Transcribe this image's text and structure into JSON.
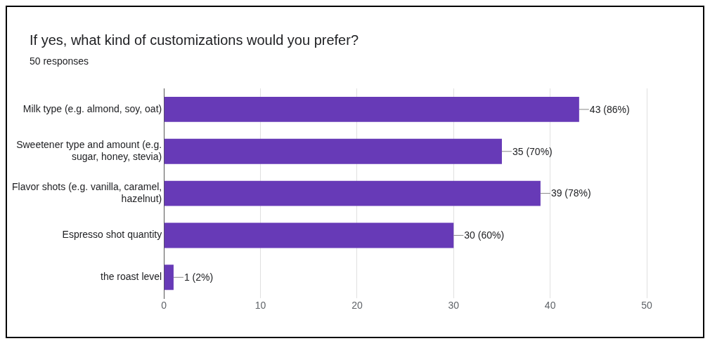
{
  "chart_data": {
    "type": "bar",
    "orientation": "horizontal",
    "title": "If yes, what kind of customizations would you prefer?",
    "subtitle": "50 responses",
    "categories": [
      "Milk type (e.g. almond, soy, oat)",
      "Sweetener type and amount (e.g. sugar, honey, stevia)",
      "Flavor shots (e.g. vanilla, caramel, hazelnut)",
      "Espresso shot quantity",
      "the roast level"
    ],
    "values": [
      43,
      35,
      39,
      30,
      1
    ],
    "color": "#673ab7",
    "value_labels": [
      "43 (86%)",
      "35 (70%)",
      "39 (78%)",
      "30 (60%)",
      "1 (2%)"
    ],
    "xlim": [
      0,
      50
    ],
    "xticks": [
      0,
      10,
      20,
      30,
      40,
      50
    ],
    "grid": "x",
    "legend": false
  }
}
